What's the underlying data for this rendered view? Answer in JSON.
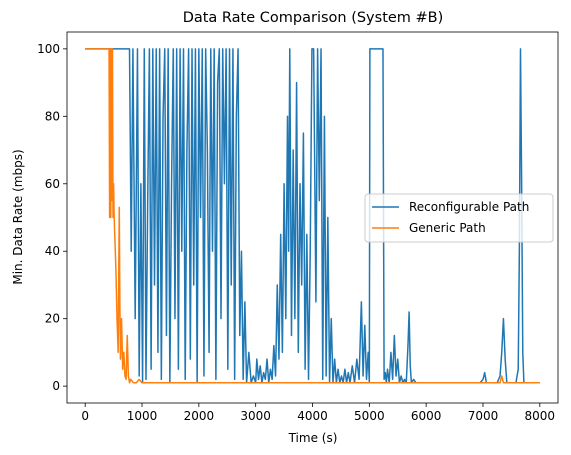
{
  "chart_data": {
    "type": "line",
    "title": "Data Rate Comparison (System #B)",
    "xlabel": "Time (s)",
    "ylabel": "Min. Data Rate (mbps)",
    "xlim": [
      -320,
      8320
    ],
    "ylim": [
      -5,
      105
    ],
    "xticks": [
      0,
      1000,
      2000,
      3000,
      4000,
      5000,
      6000,
      7000,
      8000
    ],
    "yticks": [
      0,
      20,
      40,
      60,
      80,
      100
    ],
    "grid": false,
    "legend_position": "center-right",
    "series": [
      {
        "name": "Reconfigurable Path",
        "color": "#1f77b4",
        "points": [
          [
            0,
            100
          ],
          [
            430,
            100
          ],
          [
            480,
            100
          ],
          [
            520,
            100
          ],
          [
            600,
            100
          ],
          [
            700,
            100
          ],
          [
            740,
            100
          ],
          [
            780,
            100
          ],
          [
            810,
            40
          ],
          [
            840,
            100
          ],
          [
            880,
            20
          ],
          [
            920,
            100
          ],
          [
            950,
            3
          ],
          [
            980,
            60
          ],
          [
            1010,
            1
          ],
          [
            1040,
            100
          ],
          [
            1070,
            2
          ],
          [
            1100,
            55
          ],
          [
            1130,
            100
          ],
          [
            1160,
            5
          ],
          [
            1190,
            100
          ],
          [
            1220,
            30
          ],
          [
            1250,
            100
          ],
          [
            1280,
            10
          ],
          [
            1310,
            100
          ],
          [
            1340,
            2
          ],
          [
            1370,
            80
          ],
          [
            1400,
            100
          ],
          [
            1430,
            15
          ],
          [
            1460,
            100
          ],
          [
            1490,
            1
          ],
          [
            1520,
            60
          ],
          [
            1550,
            100
          ],
          [
            1580,
            20
          ],
          [
            1610,
            100
          ],
          [
            1640,
            5
          ],
          [
            1670,
            100
          ],
          [
            1700,
            40
          ],
          [
            1730,
            100
          ],
          [
            1760,
            2
          ],
          [
            1790,
            70
          ],
          [
            1820,
            100
          ],
          [
            1850,
            8
          ],
          [
            1880,
            100
          ],
          [
            1910,
            30
          ],
          [
            1940,
            100
          ],
          [
            1970,
            1
          ],
          [
            2000,
            100
          ],
          [
            2030,
            50
          ],
          [
            2060,
            100
          ],
          [
            2090,
            3
          ],
          [
            2120,
            100
          ],
          [
            2150,
            70
          ],
          [
            2180,
            10
          ],
          [
            2210,
            100
          ],
          [
            2240,
            40
          ],
          [
            2270,
            100
          ],
          [
            2300,
            2
          ],
          [
            2330,
            90
          ],
          [
            2360,
            100
          ],
          [
            2390,
            20
          ],
          [
            2420,
            100
          ],
          [
            2450,
            60
          ],
          [
            2480,
            100
          ],
          [
            2510,
            5
          ],
          [
            2540,
            100
          ],
          [
            2570,
            30
          ],
          [
            2600,
            100
          ],
          [
            2630,
            2
          ],
          [
            2660,
            80
          ],
          [
            2690,
            100
          ],
          [
            2720,
            15
          ],
          [
            2750,
            40
          ],
          [
            2780,
            2
          ],
          [
            2810,
            25
          ],
          [
            2840,
            1
          ],
          [
            2880,
            10
          ],
          [
            2920,
            1
          ],
          [
            2960,
            3
          ],
          [
            3000,
            1
          ],
          [
            3020,
            8
          ],
          [
            3050,
            2
          ],
          [
            3080,
            6
          ],
          [
            3110,
            1
          ],
          [
            3140,
            4
          ],
          [
            3170,
            2
          ],
          [
            3200,
            8
          ],
          [
            3230,
            1
          ],
          [
            3260,
            5
          ],
          [
            3290,
            2
          ],
          [
            3320,
            12
          ],
          [
            3350,
            3
          ],
          [
            3380,
            30
          ],
          [
            3410,
            8
          ],
          [
            3440,
            45
          ],
          [
            3470,
            10
          ],
          [
            3500,
            60
          ],
          [
            3530,
            20
          ],
          [
            3560,
            80
          ],
          [
            3580,
            40
          ],
          [
            3600,
            100
          ],
          [
            3630,
            15
          ],
          [
            3660,
            70
          ],
          [
            3690,
            20
          ],
          [
            3720,
            90
          ],
          [
            3750,
            10
          ],
          [
            3780,
            60
          ],
          [
            3810,
            30
          ],
          [
            3840,
            75
          ],
          [
            3870,
            5
          ],
          [
            3900,
            45
          ],
          [
            3930,
            2
          ],
          [
            3960,
            40
          ],
          [
            3990,
            100
          ],
          [
            4020,
            100
          ],
          [
            4060,
            25
          ],
          [
            4090,
            100
          ],
          [
            4120,
            55
          ],
          [
            4150,
            100
          ],
          [
            4180,
            2
          ],
          [
            4210,
            80
          ],
          [
            4240,
            3
          ],
          [
            4270,
            50
          ],
          [
            4300,
            1
          ],
          [
            4330,
            20
          ],
          [
            4360,
            1
          ],
          [
            4390,
            8
          ],
          [
            4420,
            1
          ],
          [
            4450,
            5
          ],
          [
            4480,
            1
          ],
          [
            4510,
            3
          ],
          [
            4540,
            1
          ],
          [
            4570,
            5
          ],
          [
            4600,
            1
          ],
          [
            4630,
            4
          ],
          [
            4660,
            1
          ],
          [
            4700,
            6
          ],
          [
            4740,
            1
          ],
          [
            4780,
            8
          ],
          [
            4820,
            2
          ],
          [
            4860,
            25
          ],
          [
            4890,
            3
          ],
          [
            4920,
            18
          ],
          [
            4950,
            2
          ],
          [
            4980,
            10
          ],
          [
            5000,
            1
          ],
          [
            5010,
            100
          ],
          [
            5100,
            100
          ],
          [
            5200,
            100
          ],
          [
            5240,
            100
          ],
          [
            5260,
            2
          ],
          [
            5280,
            4
          ],
          [
            5300,
            1
          ],
          [
            5320,
            5
          ],
          [
            5350,
            1
          ],
          [
            5380,
            10
          ],
          [
            5410,
            2
          ],
          [
            5440,
            15
          ],
          [
            5470,
            3
          ],
          [
            5500,
            8
          ],
          [
            5530,
            1
          ],
          [
            5560,
            3
          ],
          [
            5590,
            1
          ],
          [
            5620,
            2
          ],
          [
            5650,
            1
          ],
          [
            5680,
            12
          ],
          [
            5700,
            22
          ],
          [
            5720,
            6
          ],
          [
            5740,
            1
          ],
          [
            5780,
            2
          ],
          [
            5820,
            1
          ],
          [
            5860,
            1
          ],
          [
            5900,
            1
          ],
          [
            5940,
            1
          ],
          [
            5980,
            1
          ],
          [
            6020,
            1
          ],
          [
            6060,
            1
          ],
          [
            6100,
            1
          ],
          [
            6150,
            1
          ],
          [
            6200,
            1
          ],
          [
            6250,
            1
          ],
          [
            6300,
            1
          ],
          [
            6350,
            1
          ],
          [
            6400,
            1
          ],
          [
            6450,
            1
          ],
          [
            6500,
            1
          ],
          [
            6550,
            1
          ],
          [
            6600,
            1
          ],
          [
            6650,
            1
          ],
          [
            6700,
            1
          ],
          [
            6750,
            1
          ],
          [
            6800,
            1
          ],
          [
            6850,
            1
          ],
          [
            6900,
            1
          ],
          [
            6950,
            1
          ],
          [
            7000,
            2
          ],
          [
            7030,
            4
          ],
          [
            7060,
            1
          ],
          [
            7100,
            1
          ],
          [
            7150,
            1
          ],
          [
            7200,
            1
          ],
          [
            7250,
            1
          ],
          [
            7300,
            3
          ],
          [
            7330,
            10
          ],
          [
            7360,
            20
          ],
          [
            7390,
            8
          ],
          [
            7420,
            1
          ],
          [
            7460,
            1
          ],
          [
            7500,
            1
          ],
          [
            7540,
            1
          ],
          [
            7580,
            1
          ],
          [
            7620,
            5
          ],
          [
            7640,
            40
          ],
          [
            7660,
            100
          ],
          [
            7680,
            60
          ],
          [
            7700,
            10
          ],
          [
            7720,
            1
          ],
          [
            7760,
            1
          ],
          [
            7800,
            1
          ],
          [
            7840,
            1
          ],
          [
            7880,
            1
          ],
          [
            7920,
            1
          ],
          [
            7960,
            1
          ],
          [
            8000,
            1
          ]
        ]
      },
      {
        "name": "Generic Path",
        "color": "#ff7f0e",
        "points": [
          [
            0,
            100
          ],
          [
            100,
            100
          ],
          [
            200,
            100
          ],
          [
            300,
            100
          ],
          [
            380,
            100
          ],
          [
            420,
            100
          ],
          [
            430,
            50
          ],
          [
            440,
            100
          ],
          [
            450,
            50
          ],
          [
            460,
            100
          ],
          [
            470,
            55
          ],
          [
            480,
            100
          ],
          [
            490,
            50
          ],
          [
            500,
            60
          ],
          [
            510,
            50
          ],
          [
            520,
            45
          ],
          [
            540,
            35
          ],
          [
            560,
            20
          ],
          [
            580,
            10
          ],
          [
            600,
            53
          ],
          [
            610,
            25
          ],
          [
            620,
            8
          ],
          [
            640,
            20
          ],
          [
            660,
            5
          ],
          [
            680,
            10
          ],
          [
            700,
            3
          ],
          [
            720,
            2
          ],
          [
            740,
            15
          ],
          [
            760,
            3
          ],
          [
            780,
            1
          ],
          [
            800,
            2
          ],
          [
            850,
            1
          ],
          [
            900,
            1
          ],
          [
            950,
            2
          ],
          [
            1000,
            1
          ],
          [
            1100,
            1
          ],
          [
            1200,
            1
          ],
          [
            1300,
            1
          ],
          [
            1400,
            1
          ],
          [
            1500,
            1
          ],
          [
            1600,
            1
          ],
          [
            1700,
            1
          ],
          [
            1800,
            1
          ],
          [
            1900,
            1
          ],
          [
            2000,
            1
          ],
          [
            2100,
            1
          ],
          [
            2200,
            1
          ],
          [
            2300,
            1
          ],
          [
            2400,
            1
          ],
          [
            2500,
            1
          ],
          [
            2600,
            1
          ],
          [
            2700,
            1
          ],
          [
            2800,
            1
          ],
          [
            2900,
            1
          ],
          [
            3000,
            1
          ],
          [
            3100,
            1
          ],
          [
            3200,
            1
          ],
          [
            3300,
            1
          ],
          [
            3400,
            1
          ],
          [
            3500,
            1
          ],
          [
            3600,
            1
          ],
          [
            3700,
            1
          ],
          [
            3800,
            1
          ],
          [
            3900,
            1
          ],
          [
            4000,
            1
          ],
          [
            4100,
            1
          ],
          [
            4200,
            1
          ],
          [
            4300,
            1
          ],
          [
            4400,
            1
          ],
          [
            4500,
            1
          ],
          [
            4600,
            1
          ],
          [
            4700,
            1
          ],
          [
            4800,
            1
          ],
          [
            4900,
            1
          ],
          [
            5000,
            1
          ],
          [
            5100,
            1
          ],
          [
            5200,
            1
          ],
          [
            5300,
            1
          ],
          [
            5400,
            1
          ],
          [
            5500,
            1
          ],
          [
            5600,
            1
          ],
          [
            5700,
            1
          ],
          [
            5800,
            1
          ],
          [
            5900,
            1
          ],
          [
            6000,
            1
          ],
          [
            6100,
            1
          ],
          [
            6200,
            1
          ],
          [
            6300,
            1
          ],
          [
            6400,
            1
          ],
          [
            6500,
            1
          ],
          [
            6600,
            1
          ],
          [
            6700,
            1
          ],
          [
            6800,
            1
          ],
          [
            6900,
            1
          ],
          [
            7000,
            1
          ],
          [
            7100,
            1
          ],
          [
            7200,
            1
          ],
          [
            7300,
            1
          ],
          [
            7330,
            3
          ],
          [
            7360,
            1
          ],
          [
            7400,
            1
          ],
          [
            7500,
            1
          ],
          [
            7600,
            1
          ],
          [
            7700,
            1
          ],
          [
            7800,
            1
          ],
          [
            7900,
            1
          ],
          [
            8000,
            1
          ]
        ]
      }
    ]
  }
}
